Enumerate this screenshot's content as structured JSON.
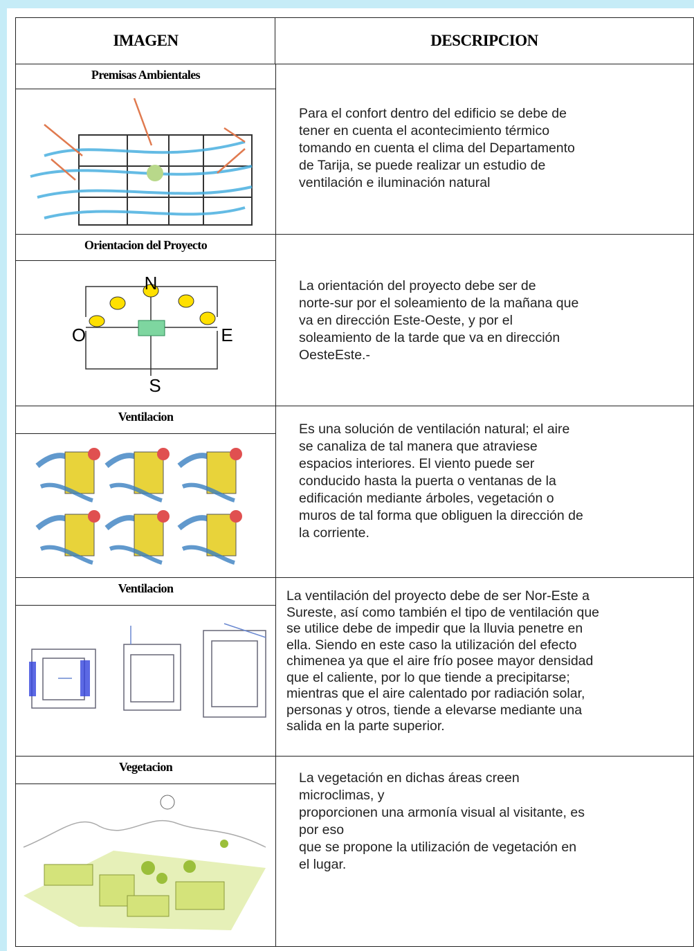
{
  "header": [
    "IMAGEN",
    "DESCRIPCION"
  ],
  "rows": [
    {
      "title": "Premisas Ambientales",
      "description": [
        "Para el confort dentro del edificio se debe de",
        "tener en cuenta el acontecimiento térmico",
        "tomando en cuenta el clima del Departamento",
        "de Tarija,  se puede realizar un estudio de",
        "ventilación e iluminación natural"
      ]
    },
    {
      "title": "Orientacion del Proyecto",
      "image_labels": [
        "N",
        "O",
        "E",
        "S"
      ],
      "description": [
        "La orientación del proyecto debe ser de",
        "norte-sur por el soleamiento de la mañana que",
        "va en dirección Este-Oeste, y por el",
        "soleamiento de la tarde que va en dirección",
        "OesteEste.-"
      ]
    },
    {
      "title": "Ventilacion",
      "description": [
        "Es una solución de ventilación natural; el aire",
        "se canaliza de tal manera que atraviese",
        "espacios interiores. El viento puede ser",
        "conducido hasta la puerta o ventanas de la",
        "edificación mediante árboles, vegetación o",
        "muros de tal forma que obliguen la dirección de",
        "la corriente."
      ]
    },
    {
      "title": "Ventilacion",
      "description": [
        "La ventilación del proyecto debe de ser Nor-Este a",
        "Sureste, así como también el tipo de ventilación que",
        "se utilice debe de impedir que la lluvia penetre en",
        "ella. Siendo en este caso la utilización del efecto",
        "chimenea ya que el aire frío posee mayor densidad",
        "que el caliente, por lo que tiende a precipitarse;",
        "mientras que el aire calentado por radiación solar,",
        "personas y otros, tiende a elevarse mediante una",
        "salida en la parte superior."
      ]
    },
    {
      "title": "Vegetacion",
      "description": [
        "La vegetación en dichas áreas creen",
        "microclimas, y",
        "proporcionen una armonía visual al visitante, es",
        "por eso",
        "que se propone la utilización de vegetación en",
        "el lugar."
      ]
    }
  ]
}
